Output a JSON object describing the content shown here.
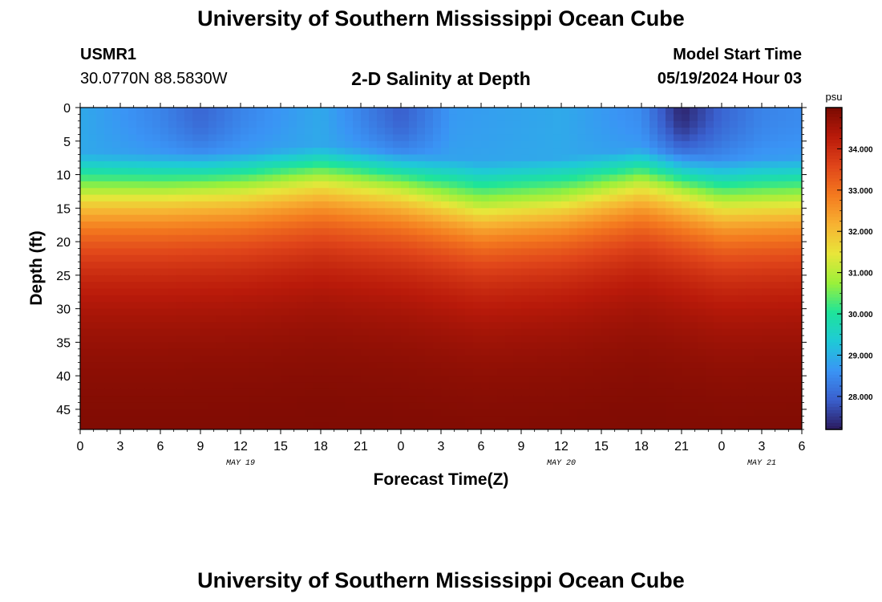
{
  "header": {
    "title": "University of Southern Mississippi Ocean Cube",
    "station": "USMR1",
    "coords": "30.0770N  88.5830W",
    "subtitle": "2-D Salinity at Depth",
    "model_label": "Model Start Time",
    "model_time": "05/19/2024 Hour 03"
  },
  "footer": {
    "title": "University of Southern Mississippi Ocean Cube"
  },
  "colors": {
    "scale": [
      "#2b1a5e",
      "#3a5fcd",
      "#3a94f5",
      "#1fc9d8",
      "#1ee49a",
      "#9bf03a",
      "#e8e63a",
      "#f7b232",
      "#f47a1f",
      "#e0451a",
      "#b91a0a",
      "#7a0a02"
    ]
  },
  "chart_data": {
    "type": "heatmap",
    "xlabel": "Forecast Time(Z)",
    "ylabel": "Depth (ft)",
    "colorbar_unit": "psu",
    "x_tick_labels": [
      "0",
      "3",
      "6",
      "9",
      "12",
      "15",
      "18",
      "21",
      "0",
      "3",
      "6",
      "9",
      "12",
      "15",
      "18",
      "21",
      "0",
      "3",
      "6"
    ],
    "x_range_hours": [
      0,
      54
    ],
    "date_labels": [
      {
        "text": "MAY 19",
        "hour": 12
      },
      {
        "text": "MAY 20",
        "hour": 36
      },
      {
        "text": "MAY 21",
        "hour": 51
      }
    ],
    "y_ticks": [
      0,
      5,
      10,
      15,
      20,
      25,
      30,
      35,
      40,
      45
    ],
    "ylim": [
      48,
      0
    ],
    "colorbar_ticks": [
      "28.000",
      "29.000",
      "30.000",
      "31.000",
      "32.000",
      "33.000",
      "34.000"
    ],
    "colorbar_range": [
      27.2,
      35.0
    ],
    "surface_salinity": {
      "hours": [
        0,
        6,
        9,
        12,
        18,
        24,
        28,
        36,
        42,
        45,
        48,
        51,
        54
      ],
      "values": [
        28.9,
        28.4,
        28.0,
        28.4,
        28.9,
        27.9,
        28.7,
        28.9,
        28.5,
        27.3,
        28.0,
        28.4,
        28.5
      ]
    },
    "isohaline_31_depth_ft": {
      "hours": [
        0,
        6,
        12,
        18,
        24,
        30,
        36,
        42,
        48,
        54
      ],
      "values": [
        12.5,
        12.5,
        12.0,
        10.5,
        12.0,
        14.5,
        13.5,
        11.0,
        14.0,
        13.5
      ]
    },
    "bottom_salinity": 35.0
  }
}
